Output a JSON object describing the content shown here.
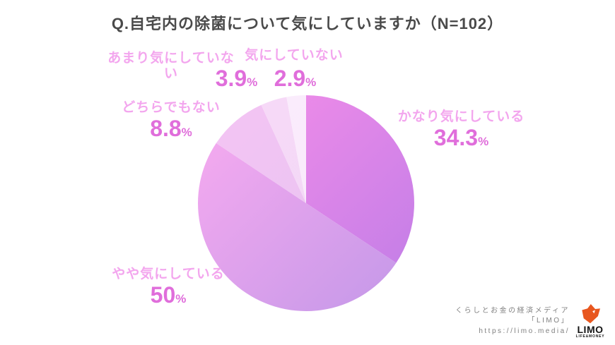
{
  "title": "Q.自宅内の除菌について気にしていますか（N=102）",
  "chart_data": {
    "type": "pie",
    "title": "Q.自宅内の除菌について気にしていますか（N=102）",
    "sample_label": "N=102",
    "categories": [
      "かなり気にしている",
      "やや気にしている",
      "どちらでもない",
      "あまり気にしていない",
      "気にしていない"
    ],
    "values": [
      34.3,
      50,
      8.8,
      3.9,
      2.9
    ],
    "value_labels": [
      "34.3",
      "50",
      "8.8",
      "3.9",
      "2.9"
    ],
    "unit": "%",
    "start_angle_deg": -90,
    "direction": "clockwise",
    "labels_position": "outside",
    "legend": "none",
    "slice_colors": [
      [
        "#f18ce9",
        "#c67fe7"
      ],
      [
        "#f3a9ef",
        "#c99ae9"
      ],
      [
        "#f3c4f3",
        "#e6c4f2"
      ],
      [
        "#f7d9f7",
        "#f0d8f6"
      ],
      [
        "#fbecfc",
        "#f7e9fa"
      ]
    ]
  },
  "colors": {
    "title_text": "#4a4a4a",
    "category_label": "#f3a6ee",
    "percent_value": "#e06edb",
    "background": "#ffffff",
    "logo_orange": "#e8571f",
    "footer_text": "#808080"
  },
  "footer": {
    "line1": "くらしとお金の経済メディア",
    "line2": "「LIMO」",
    "line3": "https://limo.media/"
  },
  "logo": {
    "word": "LIMO",
    "tagline": "LIFE&MONEY"
  }
}
